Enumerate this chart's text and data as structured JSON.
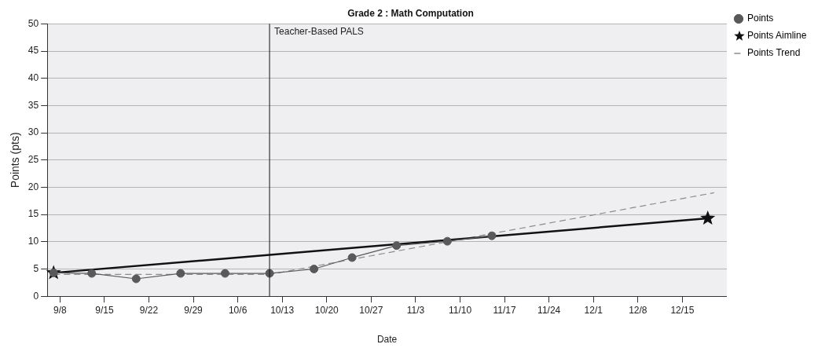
{
  "chart_data": {
    "type": "line",
    "title": "Grade 2 : Math Computation",
    "xlabel": "Date",
    "ylabel": "Points (pts)",
    "xlim": [
      "--09-06",
      "--12-22"
    ],
    "xticks": [
      {
        "value": "--09-08",
        "label": "9/8"
      },
      {
        "value": "--09-15",
        "label": "9/15"
      },
      {
        "value": "--09-22",
        "label": "9/22"
      },
      {
        "value": "--09-29",
        "label": "9/29"
      },
      {
        "value": "--10-06",
        "label": "10/6"
      },
      {
        "value": "--10-13",
        "label": "10/13"
      },
      {
        "value": "--10-20",
        "label": "10/20"
      },
      {
        "value": "--10-27",
        "label": "10/27"
      },
      {
        "value": "--11-03",
        "label": "11/3"
      },
      {
        "value": "--11-10",
        "label": "11/10"
      },
      {
        "value": "--11-17",
        "label": "11/17"
      },
      {
        "value": "--11-24",
        "label": "11/24"
      },
      {
        "value": "--12-01",
        "label": "12/1"
      },
      {
        "value": "--12-08",
        "label": "12/8"
      },
      {
        "value": "--12-15",
        "label": "12/15"
      }
    ],
    "ylim": [
      0,
      50
    ],
    "yticks": [
      0,
      5,
      10,
      15,
      20,
      25,
      30,
      35,
      40,
      45,
      50
    ],
    "grid": "y",
    "legend": "right",
    "series": [
      {
        "name": "Points",
        "color": "#595959",
        "marker": "circle",
        "line_style": "solid",
        "x": [
          "--09-07",
          "--09-13",
          "--09-20",
          "--09-27",
          "--10-04",
          "--10-11",
          "--10-18",
          "--10-24",
          "--10-31",
          "--11-08",
          "--11-15"
        ],
        "values": [
          4.3,
          4.2,
          3.2,
          4.2,
          4.2,
          4.2,
          5.0,
          7.1,
          9.3,
          10.1,
          11.1
        ]
      },
      {
        "name": "Points Aimline",
        "color": "#111111",
        "marker": "star",
        "line_style": "solid",
        "x": [
          "--09-07",
          "--12-19"
        ],
        "values": [
          4.3,
          14.3
        ]
      },
      {
        "name": "Points Trend",
        "color": "#8c8c8c",
        "marker": "none",
        "line_style": "dashed",
        "x": [
          "--09-07",
          "--10-11",
          "--12-20"
        ],
        "values": [
          4.0,
          4.0,
          19.0
        ]
      }
    ],
    "ref_lines": [
      {
        "axis": "x",
        "value": "--10-11",
        "label": "Teacher-Based PALS",
        "color": "#111111"
      }
    ]
  }
}
